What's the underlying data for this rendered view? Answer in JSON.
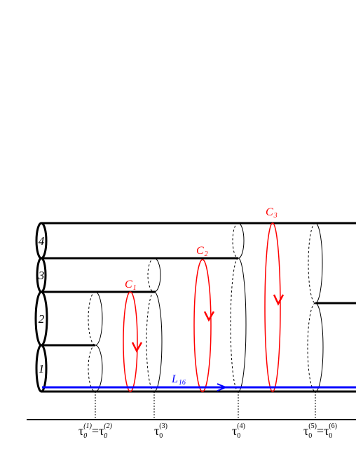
{
  "colors": {
    "lines": "#000000",
    "cycles": "#ff0000",
    "path": "#0000ff",
    "background": "#ffffff"
  },
  "tube_labels": [
    "4",
    "3",
    "2",
    "1"
  ],
  "cycle_labels": {
    "c1": {
      "main": "C",
      "sub": "1"
    },
    "c2": {
      "main": "C",
      "sub": "2"
    },
    "c3": {
      "main": "C",
      "sub": "3"
    }
  },
  "path_label": {
    "main": "L",
    "sub": "16"
  },
  "time_labels": {
    "t1": {
      "tau": "τ",
      "sub": "0",
      "sup": "(1)",
      "eq": "=",
      "tau2": "τ",
      "sub2": "0",
      "sup2": "(2)"
    },
    "t3": {
      "tau": "τ",
      "sub": "0",
      "sup": "(3)"
    },
    "t4": {
      "tau": "τ",
      "sub": "0",
      "sup": "(4)"
    },
    "t5": {
      "tau": "τ",
      "sub": "0",
      "sup": "(5)",
      "eq": "=",
      "tau2": "τ",
      "sub2": "0",
      "sup2": "(6)"
    }
  }
}
